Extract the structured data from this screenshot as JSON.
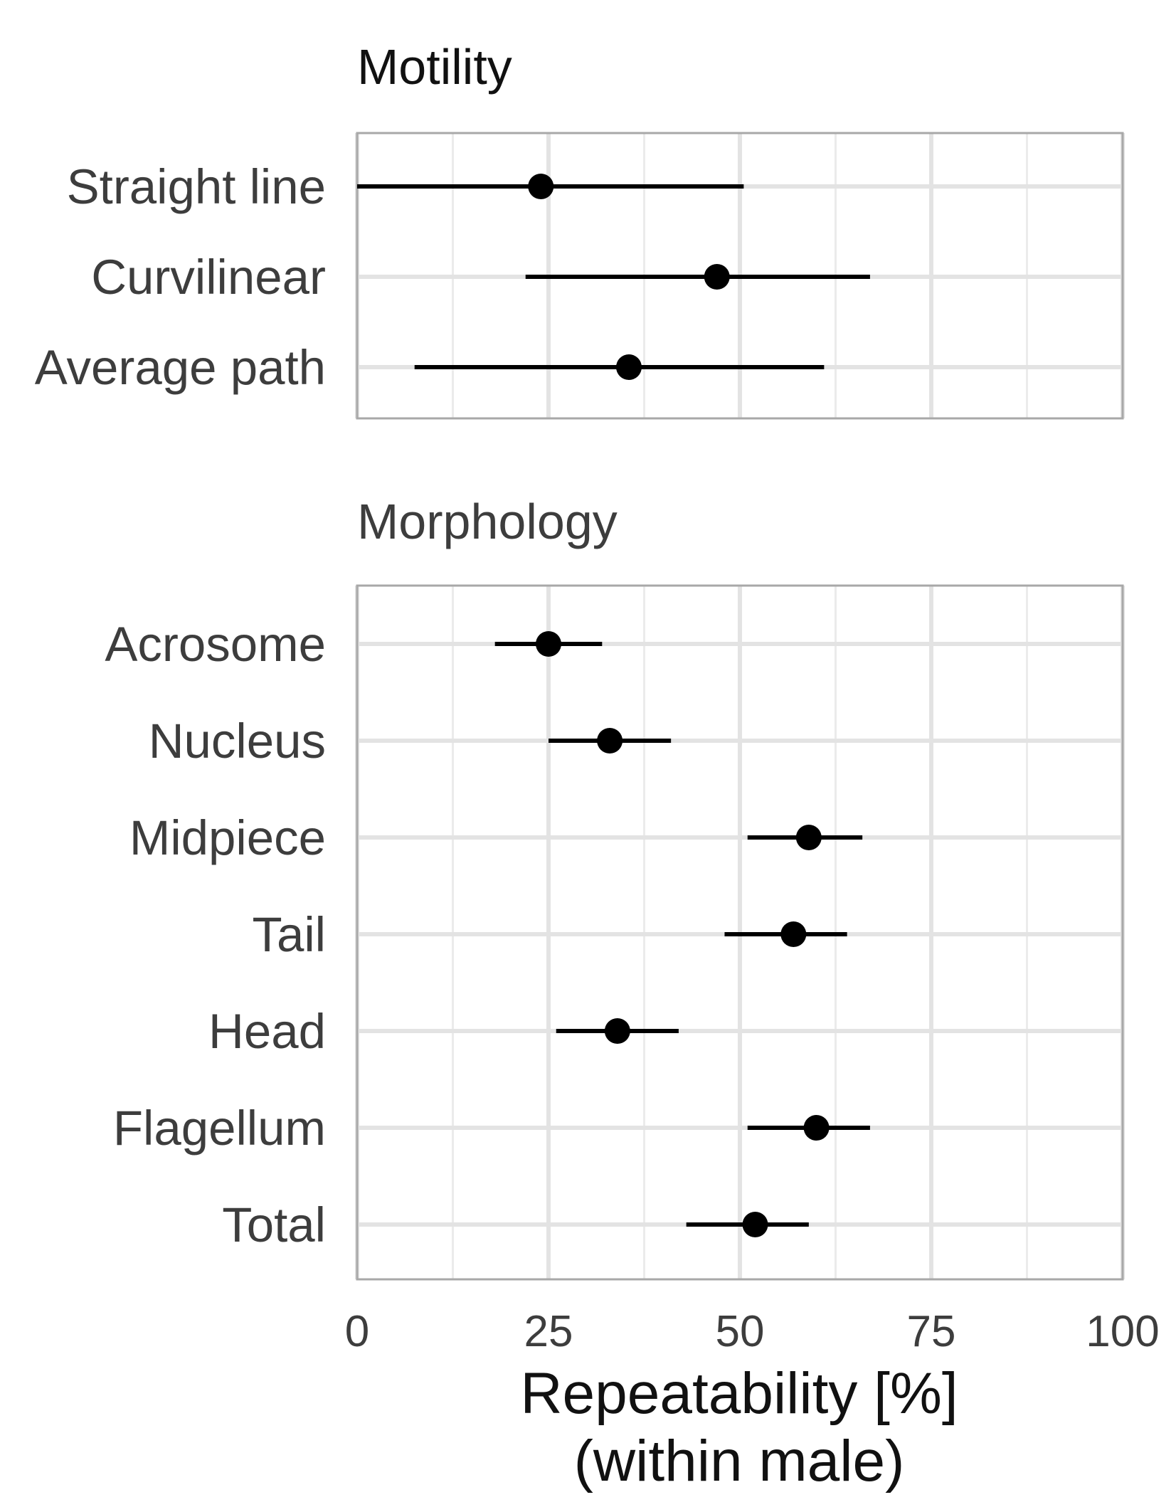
{
  "chart_data": {
    "type": "dot-errorbar",
    "x_axis": {
      "label_line1": "Repeatability [%]",
      "label_line2": "(within male)",
      "range": [
        0,
        100
      ],
      "ticks": [
        0,
        25,
        50,
        75,
        100
      ],
      "tick_labels": [
        "0",
        "25",
        "50",
        "75",
        "100"
      ]
    },
    "grid": true,
    "panels": [
      {
        "title": "Motility",
        "title_color": "#111111",
        "items": [
          {
            "label": "Straight line",
            "estimate": 24,
            "lower": 0,
            "upper": 50.5
          },
          {
            "label": "Curvilinear",
            "estimate": 47,
            "lower": 22,
            "upper": 67
          },
          {
            "label": "Average path",
            "estimate": 35.5,
            "lower": 7.5,
            "upper": 61
          }
        ]
      },
      {
        "title": "Morphology",
        "title_color": "#3d3d3d",
        "items": [
          {
            "label": "Acrosome",
            "estimate": 25,
            "lower": 18,
            "upper": 32
          },
          {
            "label": "Nucleus",
            "estimate": 33,
            "lower": 25,
            "upper": 41
          },
          {
            "label": "Midpiece",
            "estimate": 59,
            "lower": 51,
            "upper": 66
          },
          {
            "label": "Tail",
            "estimate": 57,
            "lower": 48,
            "upper": 64
          },
          {
            "label": "Head",
            "estimate": 34,
            "lower": 26,
            "upper": 42
          },
          {
            "label": "Flagellum",
            "estimate": 60,
            "lower": 51,
            "upper": 67
          },
          {
            "label": "Total",
            "estimate": 52,
            "lower": 43,
            "upper": 59
          }
        ]
      }
    ]
  }
}
